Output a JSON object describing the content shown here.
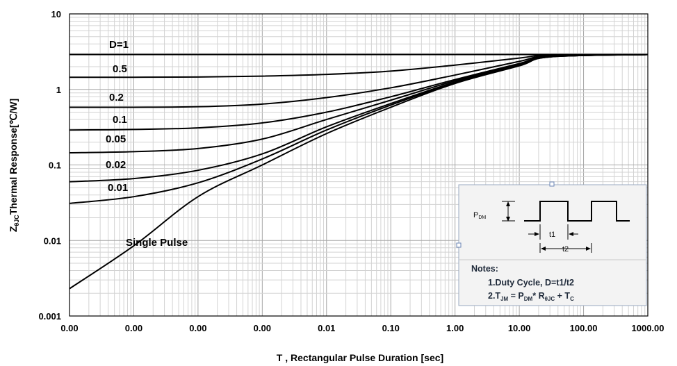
{
  "chart_data": {
    "type": "line",
    "xscale": "log",
    "yscale": "log",
    "x_tick_labels": [
      "0.00",
      "0.00",
      "0.00",
      "0.00",
      "0.01",
      "0.10",
      "1.00",
      "10.00",
      "100.00",
      "1000.00"
    ],
    "y_tick_labels": [
      "0.001",
      "0.01",
      "0.1",
      "1",
      "10"
    ],
    "xlim": [
      1e-06,
      1000
    ],
    "ylim": [
      0.001,
      10
    ],
    "xlabel": "T , Rectangular Pulse Duration [sec]",
    "ylabel_parts": {
      "prefix": "Z",
      "subscript": "θJC",
      "suffix": "Thermal Response[℃/W]"
    },
    "grid": true,
    "series": [
      {
        "name": "D=1",
        "x": [
          1e-06,
          1000
        ],
        "y": [
          2.9,
          2.9
        ]
      },
      {
        "name": "0.5",
        "x": [
          1e-06,
          1e-05,
          0.0001,
          0.001,
          0.01,
          0.1,
          1,
          10,
          30,
          1000
        ],
        "y": [
          1.45,
          1.45,
          1.46,
          1.5,
          1.58,
          1.75,
          2.1,
          2.6,
          2.85,
          2.9
        ]
      },
      {
        "name": "0.2",
        "x": [
          1e-06,
          1e-05,
          0.0001,
          0.001,
          0.01,
          0.1,
          1,
          10,
          30,
          1000
        ],
        "y": [
          0.58,
          0.58,
          0.59,
          0.64,
          0.78,
          1.05,
          1.55,
          2.35,
          2.8,
          2.9
        ]
      },
      {
        "name": "0.1",
        "x": [
          1e-06,
          1e-05,
          0.0001,
          0.001,
          0.01,
          0.1,
          1,
          10,
          30,
          1000
        ],
        "y": [
          0.29,
          0.295,
          0.31,
          0.36,
          0.5,
          0.8,
          1.35,
          2.2,
          2.75,
          2.9
        ]
      },
      {
        "name": "0.05",
        "x": [
          1e-06,
          1e-05,
          0.0001,
          0.001,
          0.01,
          0.1,
          1,
          10,
          30,
          1000
        ],
        "y": [
          0.145,
          0.15,
          0.165,
          0.22,
          0.4,
          0.72,
          1.3,
          2.15,
          2.72,
          2.9
        ]
      },
      {
        "name": "0.02",
        "x": [
          1e-06,
          1e-05,
          0.0001,
          0.001,
          0.01,
          0.1,
          1,
          10,
          30,
          1000
        ],
        "y": [
          0.06,
          0.066,
          0.085,
          0.14,
          0.32,
          0.65,
          1.25,
          2.1,
          2.7,
          2.9
        ]
      },
      {
        "name": "0.01",
        "x": [
          1e-06,
          1e-05,
          0.0001,
          0.001,
          0.01,
          0.1,
          1,
          10,
          30,
          1000
        ],
        "y": [
          0.031,
          0.038,
          0.058,
          0.12,
          0.29,
          0.62,
          1.22,
          2.08,
          2.7,
          2.9
        ]
      },
      {
        "name": "Single Pulse",
        "x": [
          1e-06,
          1e-05,
          0.0001,
          0.001,
          0.01,
          0.1,
          1,
          10,
          30,
          1000
        ],
        "y": [
          0.0023,
          0.0085,
          0.038,
          0.1,
          0.26,
          0.58,
          1.2,
          2.05,
          2.7,
          2.9
        ]
      }
    ],
    "line_color": "#000000",
    "background": "#ffffff",
    "grid_major_color": "#a6a6a6",
    "grid_minor_color": "#d3d3d3"
  },
  "inset": {
    "pdm_label": "P",
    "pdm_sub": "DM",
    "t1_label": "t1",
    "t2_label": "t2",
    "notes_title": "Notes:",
    "note1": "1.Duty  Cycle, D=t1/t2",
    "note2_parts": {
      "t": "2.T",
      "t_sub": "JM",
      "eq": " = P",
      "p_sub": "DM",
      "times": "* R",
      "r_sub": "θJC",
      "plus": " + T",
      "c_sub": "C"
    },
    "background": "#f3f3f3"
  }
}
